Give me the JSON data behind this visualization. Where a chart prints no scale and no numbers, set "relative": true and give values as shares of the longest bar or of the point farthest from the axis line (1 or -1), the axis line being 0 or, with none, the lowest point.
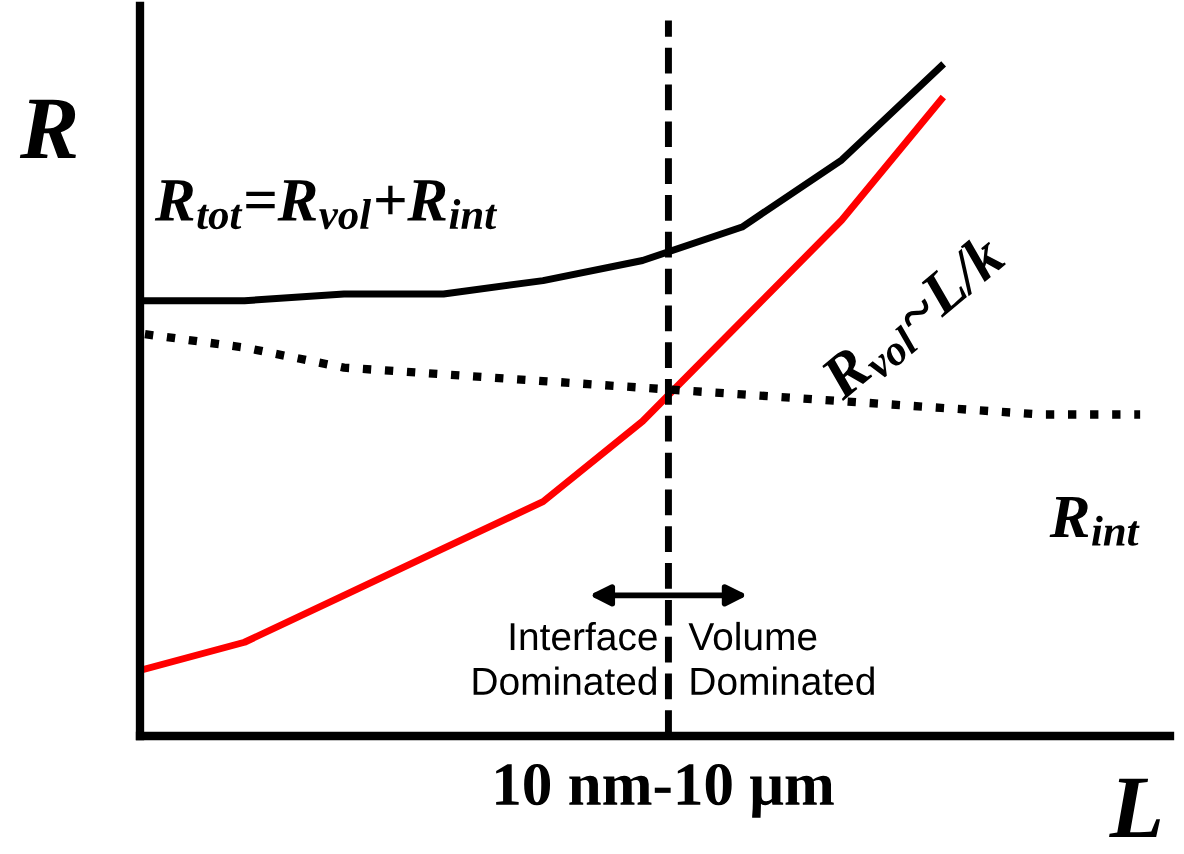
{
  "chart_data": {
    "type": "line",
    "relative": true,
    "ylabel": "R",
    "xlabel": "L",
    "categories": [
      null,
      null,
      null,
      null,
      null,
      null,
      null,
      null,
      null,
      null,
      null
    ],
    "series": [
      {
        "name": "R$_{tot}$=R$_{vol}$+R$_{int}$",
        "color": "#000000",
        "line_style": "solid",
        "values": [
          0.65,
          0.65,
          0.66,
          0.66,
          0.68,
          0.71,
          0.76,
          0.86,
          1.0,
          null,
          null
        ]
      },
      {
        "name": "R$_{vol}$~L/k",
        "color": "#ff0000",
        "line_style": "solid",
        "values": [
          0.1,
          0.14,
          0.21,
          0.28,
          0.35,
          0.47,
          0.62,
          0.77,
          0.95,
          null,
          null
        ]
      },
      {
        "name": "R$_{int}$",
        "color": "#000000",
        "line_style": "dotted",
        "values": [
          0.6,
          0.58,
          0.55,
          0.54,
          0.53,
          0.52,
          0.51,
          0.5,
          0.49,
          0.48,
          0.48
        ]
      }
    ],
    "annotations": [
      "Interface\nDominated",
      "Volume\nDominated",
      "10 nm-10 μm"
    ],
    "legend": false,
    "marker": "none"
  }
}
